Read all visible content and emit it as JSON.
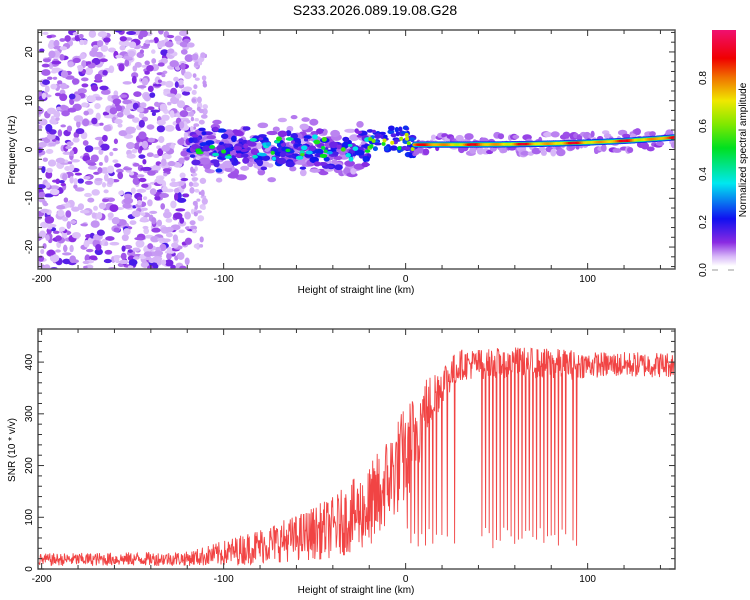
{
  "title": "S233.2026.089.19.08.G28",
  "chart_data": [
    {
      "type": "heatmap",
      "title": "",
      "xlabel": "Height of straight line (km)",
      "ylabel": "Frequency (Hz)",
      "xlim": [
        -202,
        148
      ],
      "ylim": [
        -24.5,
        24.5
      ],
      "xticks": [
        -200,
        -100,
        0,
        100
      ],
      "xtick_labels": [
        "-200",
        "-100",
        "0",
        "100"
      ],
      "yticks": [
        -20,
        -10,
        0,
        10,
        20
      ],
      "ytick_labels": [
        "-20",
        "-10",
        "0",
        "10",
        "20"
      ],
      "colorbar": {
        "label": "Normalized spectral amplitude",
        "range": [
          0.0,
          1.0
        ],
        "ticks": [
          0.0,
          0.2,
          0.4,
          0.6,
          0.8
        ],
        "tick_labels": [
          "0.0",
          "0.2",
          "0.4",
          "0.6",
          "0.8"
        ],
        "colormap": "rainbow (white-violet-blue-cyan-green-yellow-red-magenta)"
      },
      "regions": [
        {
          "name": "noise",
          "x_range": [
            -202,
            -118
          ],
          "freq_range": [
            -24.5,
            24.5
          ],
          "amplitude": 0.08
        },
        {
          "name": "scattered-signal",
          "x_range": [
            -118,
            -20
          ],
          "freq_center": 0,
          "freq_spread": 6,
          "amplitude": 0.25
        },
        {
          "name": "transition",
          "x_range": [
            -20,
            5
          ],
          "freq_center": 1.5,
          "freq_spread": 3,
          "amplitude": 0.45
        },
        {
          "name": "coherent-tone",
          "x_range": [
            5,
            148
          ],
          "freq_start": 1.0,
          "freq_end": 2.5,
          "amplitude": 0.9
        }
      ]
    },
    {
      "type": "line",
      "title": "",
      "xlabel": "Height of straight line (km)",
      "ylabel": "SNR (10 * v/v)",
      "xlim": [
        -202,
        148
      ],
      "ylim": [
        0,
        464
      ],
      "xticks": [
        -200,
        -100,
        0,
        100
      ],
      "xtick_labels": [
        "-200",
        "-100",
        "0",
        "100"
      ],
      "yticks": [
        0,
        100,
        200,
        300,
        400
      ],
      "ytick_labels": [
        "0",
        "100",
        "200",
        "300",
        "400"
      ],
      "color": "#f03030",
      "series": [
        {
          "name": "SNR",
          "envelope_x": [
            -202,
            -120,
            -100,
            -80,
            -60,
            -40,
            -20,
            0,
            10,
            20,
            30,
            60,
            90,
            100,
            148
          ],
          "envelope_mean": [
            18,
            20,
            30,
            45,
            60,
            80,
            120,
            220,
            300,
            360,
            395,
            400,
            395,
            395,
            395
          ],
          "envelope_noise": [
            12,
            14,
            25,
            35,
            45,
            60,
            80,
            100,
            70,
            40,
            30,
            30,
            30,
            25,
            25
          ],
          "dropouts_x": [
            -20,
            -17,
            -14,
            1,
            3,
            5,
            7,
            9,
            11,
            13,
            15,
            17,
            20,
            23,
            27,
            42,
            44,
            46,
            48,
            50,
            52,
            54,
            56,
            58,
            60,
            62,
            64,
            66,
            68,
            70,
            72,
            74,
            76,
            78,
            80,
            82,
            84,
            86,
            88,
            92,
            94
          ],
          "dropout_min": 40
        }
      ]
    }
  ]
}
